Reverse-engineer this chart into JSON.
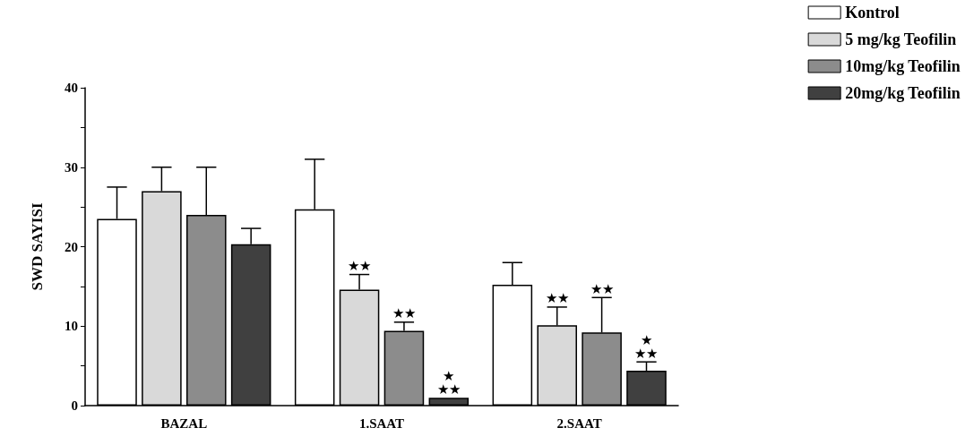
{
  "chart_data": {
    "type": "bar",
    "ylabel": "SWD SAYISI",
    "categories": [
      "BAZAL",
      "1.SAAT",
      "2.SAAT"
    ],
    "series": [
      {
        "name": "Kontrol",
        "color": "#ffffff",
        "values": [
          23.5,
          24.7,
          15.2
        ],
        "errors": [
          4,
          6.3,
          2.8
        ],
        "value_labels": [
          null,
          null,
          null
        ]
      },
      {
        "name": "5 mg/kg Teofilin",
        "color": "#d9d9d9",
        "values": [
          27,
          14.6,
          10.1
        ],
        "errors": [
          3,
          1.9,
          2.3
        ],
        "value_labels": [
          null,
          "★★",
          "★★"
        ]
      },
      {
        "name": "10mg/kg Teofilin",
        "color": "#8c8c8c",
        "values": [
          24,
          9.4,
          9.2
        ],
        "errors": [
          6,
          1.1,
          4.4
        ],
        "value_labels": [
          null,
          "★★",
          "★★"
        ]
      },
      {
        "name": "20mg/kg Teofilin",
        "color": "#404040",
        "values": [
          20.3,
          1,
          4.4
        ],
        "errors": [
          2,
          null,
          1.1
        ],
        "value_labels": [
          null,
          "★\n★★",
          "★\n★★"
        ]
      }
    ],
    "ylim": [
      0,
      40
    ],
    "yticks": [
      0,
      {
        "value": 5,
        "label": null
      },
      10,
      {
        "value": 15,
        "label": null
      },
      20,
      {
        "value": 25,
        "label": null
      },
      30,
      {
        "value": 35,
        "label": null
      },
      40
    ],
    "grid": false,
    "legend": "top right"
  }
}
